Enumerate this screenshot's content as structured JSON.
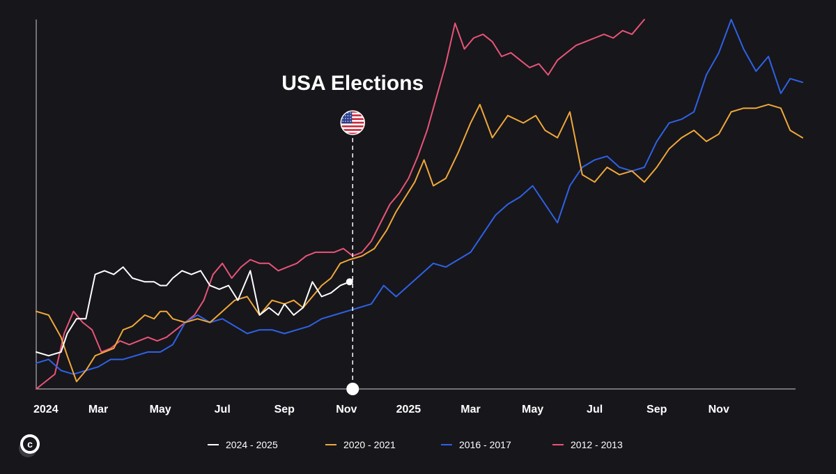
{
  "chart_data": {
    "type": "line",
    "title": "",
    "xlabel": "",
    "ylabel": "",
    "grid": false,
    "x_range": [
      0,
      24.7
    ],
    "y_range": [
      0,
      100
    ],
    "x_ticks": [
      {
        "label": "2024",
        "x": 0
      },
      {
        "label": "Mar",
        "x": 2
      },
      {
        "label": "May",
        "x": 4
      },
      {
        "label": "Jul",
        "x": 6
      },
      {
        "label": "Sep",
        "x": 8
      },
      {
        "label": "Nov",
        "x": 10
      },
      {
        "label": "2025",
        "x": 12
      },
      {
        "label": "Mar",
        "x": 14
      },
      {
        "label": "May",
        "x": 16
      },
      {
        "label": "Jul",
        "x": 18
      },
      {
        "label": "Sep",
        "x": 20
      },
      {
        "label": "Nov",
        "x": 22
      }
    ],
    "annotation": {
      "label": "USA Elections",
      "x": 10.2,
      "icon": "us-flag-icon"
    },
    "legend_position": "bottom-center",
    "series": [
      {
        "name": "2024 - 2025",
        "color": "#ffffff",
        "x": [
          0,
          0.4,
          0.8,
          1.0,
          1.3,
          1.6,
          1.9,
          2.2,
          2.5,
          2.8,
          3.1,
          3.5,
          3.8,
          4.0,
          4.2,
          4.4,
          4.7,
          5.0,
          5.3,
          5.6,
          5.9,
          6.2,
          6.5,
          6.9,
          7.2,
          7.5,
          7.8,
          8.0,
          8.3,
          8.6,
          8.9,
          9.2,
          9.5,
          9.8,
          10.1
        ],
        "y": [
          10,
          9,
          10,
          15,
          19,
          19,
          31,
          32,
          31,
          33,
          30,
          29,
          29,
          28,
          28,
          30,
          32,
          31,
          32,
          28,
          27,
          28,
          24,
          32,
          20,
          22,
          20,
          23,
          20,
          22,
          29,
          25,
          26,
          28,
          29
        ]
      },
      {
        "name": "2020 - 2021",
        "color": "#f0a83a",
        "x": [
          0,
          0.4,
          0.8,
          1.0,
          1.3,
          1.6,
          1.9,
          2.2,
          2.5,
          2.8,
          3.1,
          3.5,
          3.8,
          4.0,
          4.2,
          4.4,
          4.8,
          5.2,
          5.6,
          6.0,
          6.4,
          6.8,
          7.2,
          7.6,
          8.0,
          8.3,
          8.6,
          8.9,
          9.2,
          9.5,
          9.8,
          10.1,
          10.5,
          10.9,
          11.3,
          11.6,
          11.9,
          12.2,
          12.5,
          12.8,
          13.2,
          13.6,
          14.0,
          14.3,
          14.7,
          15.2,
          15.7,
          16.1,
          16.4,
          16.8,
          17.2,
          17.6,
          18.0,
          18.4,
          18.8,
          19.2,
          19.6,
          20.0,
          20.4,
          20.8,
          21.2,
          21.6,
          22.0,
          22.4,
          22.8,
          23.2,
          23.6,
          24.0,
          24.3,
          24.7
        ],
        "y": [
          21,
          20,
          14,
          9,
          2,
          5,
          9,
          10,
          11,
          16,
          17,
          20,
          19,
          21,
          21,
          19,
          18,
          19,
          18,
          21,
          24,
          25,
          20,
          24,
          23,
          24,
          22,
          25,
          28,
          30,
          34,
          35,
          36,
          38,
          43,
          48,
          52,
          56,
          62,
          55,
          57,
          64,
          72,
          77,
          68,
          74,
          72,
          74,
          70,
          68,
          75,
          58,
          56,
          60,
          58,
          59,
          56,
          60,
          65,
          68,
          70,
          67,
          69,
          75,
          76,
          76,
          77,
          76,
          70,
          68
        ]
      },
      {
        "name": "2016 - 2017",
        "color": "#2e62e6",
        "x": [
          0,
          0.4,
          0.8,
          1.2,
          1.6,
          2.0,
          2.4,
          2.8,
          3.2,
          3.6,
          4.0,
          4.4,
          4.8,
          5.2,
          5.6,
          6.0,
          6.4,
          6.8,
          7.2,
          7.6,
          8.0,
          8.4,
          8.8,
          9.2,
          9.6,
          10.0,
          10.4,
          10.8,
          11.2,
          11.6,
          12.0,
          12.4,
          12.8,
          13.2,
          13.6,
          14.0,
          14.4,
          14.8,
          15.2,
          15.6,
          16.0,
          16.4,
          16.8,
          17.2,
          17.6,
          18.0,
          18.4,
          18.8,
          19.2,
          19.6,
          20.0,
          20.4,
          20.8,
          21.2,
          21.6,
          22.0,
          22.4,
          22.8,
          23.2,
          23.6,
          24.0,
          24.3,
          24.7
        ],
        "y": [
          7,
          8,
          5,
          4,
          5,
          6,
          8,
          8,
          9,
          10,
          10,
          12,
          18,
          20,
          18,
          19,
          17,
          15,
          16,
          16,
          15,
          16,
          17,
          19,
          20,
          21,
          22,
          23,
          28,
          25,
          28,
          31,
          34,
          33,
          35,
          37,
          42,
          47,
          50,
          52,
          55,
          50,
          45,
          55,
          60,
          62,
          63,
          60,
          59,
          60,
          67,
          72,
          73,
          75,
          85,
          91,
          100,
          92,
          86,
          90,
          80,
          84,
          83
        ]
      },
      {
        "name": "2012 - 2013",
        "color": "#e85577",
        "x": [
          0,
          0.3,
          0.6,
          0.9,
          1.2,
          1.5,
          1.8,
          2.1,
          2.4,
          2.7,
          3.0,
          3.3,
          3.6,
          3.9,
          4.2,
          4.5,
          4.8,
          5.1,
          5.4,
          5.7,
          6.0,
          6.3,
          6.6,
          6.9,
          7.2,
          7.5,
          7.8,
          8.1,
          8.4,
          8.7,
          9.0,
          9.3,
          9.6,
          9.9,
          10.2,
          10.5,
          10.8,
          11.1,
          11.4,
          11.7,
          12.0,
          12.3,
          12.6,
          12.9,
          13.2,
          13.5,
          13.8,
          14.1,
          14.4,
          14.7,
          15.0,
          15.3,
          15.6,
          15.9,
          16.2,
          16.5,
          16.8,
          17.1,
          17.4,
          17.7,
          18.0,
          18.3,
          18.6,
          18.9,
          19.2,
          19.6
        ],
        "y": [
          0,
          2,
          4,
          15,
          21,
          18,
          16,
          10,
          11,
          13,
          12,
          13,
          14,
          13,
          14,
          16,
          18,
          20,
          24,
          31,
          34,
          30,
          33,
          35,
          34,
          34,
          32,
          33,
          34,
          36,
          37,
          37,
          37,
          38,
          36,
          37,
          40,
          45,
          50,
          53,
          57,
          63,
          70,
          79,
          88,
          99,
          92,
          95,
          96,
          94,
          90,
          91,
          89,
          87,
          88,
          85,
          89,
          91,
          93,
          94,
          95,
          96,
          95,
          97,
          96,
          100
        ]
      }
    ]
  },
  "footer": {
    "logo_letter": "c"
  }
}
